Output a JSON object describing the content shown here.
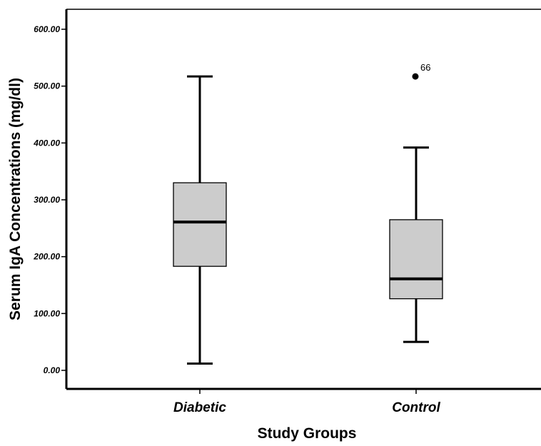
{
  "chart_data": {
    "type": "boxplot",
    "title": "",
    "xlabel": "Study Groups",
    "ylabel": "Serum IgA Concentrations (mg/dl)",
    "ylim": [
      -33,
      650
    ],
    "yticks": [
      0,
      100,
      200,
      300,
      400,
      500,
      600
    ],
    "ytick_labels": [
      "0.00",
      "100.00",
      "200.00",
      "300.00",
      "400.00",
      "500.00",
      "600.00"
    ],
    "grid": false,
    "legend": "none",
    "categories": [
      "Diabetic",
      "Control"
    ],
    "boxes": [
      {
        "category": "Diabetic",
        "whisker_low": 12,
        "q1": 183,
        "median": 261,
        "q3": 330,
        "whisker_high": 517,
        "outliers": []
      },
      {
        "category": "Control",
        "whisker_low": 50,
        "q1": 126,
        "median": 161,
        "q3": 265,
        "whisker_high": 392,
        "outliers": [
          {
            "value": 517,
            "label": "66"
          }
        ]
      }
    ],
    "colors": {
      "box_fill": "#cccccc",
      "line": "#000000",
      "background": "#ffffff"
    }
  }
}
